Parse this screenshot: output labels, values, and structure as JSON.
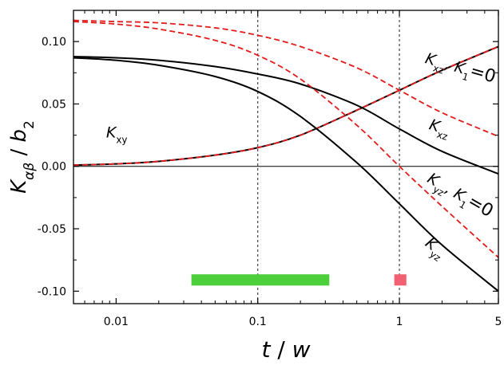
{
  "chart_data": {
    "type": "line",
    "xscale": "log",
    "xlim": [
      0.005,
      5
    ],
    "ylim": [
      -0.11,
      0.125
    ],
    "xticks": [
      0.01,
      0.1,
      1,
      5
    ],
    "xtick_labels": [
      "0.01",
      "0.1",
      "1",
      "5"
    ],
    "yticks": [
      -0.1,
      -0.05,
      0.0,
      0.05,
      0.1
    ],
    "ytick_labels": [
      "-0.10",
      "-0.05",
      "0.00",
      "0.05",
      "0.10"
    ],
    "xlabel": {
      "main": "t",
      "sep": " / ",
      "den": "w"
    },
    "ylabel": {
      "main": "K",
      "sub": "αβ",
      "sep": " / ",
      "den": "b",
      "den_sub": "2"
    },
    "vlines": [
      0.1,
      1
    ],
    "hline": 0,
    "series": [
      {
        "id": "kxy-solid",
        "style": "solid",
        "color": "#000000",
        "x": [
          0.005,
          0.01,
          0.02,
          0.05,
          0.1,
          0.2,
          0.5,
          1,
          2,
          5
        ],
        "y": [
          0.001,
          0.002,
          0.004,
          0.009,
          0.015,
          0.025,
          0.045,
          0.061,
          0.077,
          0.096
        ]
      },
      {
        "id": "kxy-dashed",
        "style": "dashed",
        "color": "#e21b1b",
        "x": [
          0.005,
          0.01,
          0.02,
          0.05,
          0.1,
          0.2,
          0.5,
          1,
          2,
          5
        ],
        "y": [
          0.001,
          0.002,
          0.004,
          0.009,
          0.015,
          0.025,
          0.045,
          0.061,
          0.077,
          0.096
        ]
      },
      {
        "id": "kxz-solid",
        "style": "solid",
        "color": "#000000",
        "x": [
          0.005,
          0.01,
          0.02,
          0.05,
          0.1,
          0.2,
          0.5,
          1,
          2,
          5
        ],
        "y": [
          0.088,
          0.087,
          0.085,
          0.08,
          0.074,
          0.066,
          0.049,
          0.03,
          0.012,
          -0.006
        ]
      },
      {
        "id": "kyz-solid",
        "style": "solid",
        "color": "#000000",
        "x": [
          0.005,
          0.01,
          0.02,
          0.05,
          0.1,
          0.2,
          0.5,
          1,
          2,
          5
        ],
        "y": [
          0.087,
          0.085,
          0.081,
          0.072,
          0.06,
          0.04,
          0.003,
          -0.03,
          -0.063,
          -0.1
        ]
      },
      {
        "id": "kxz-k1-dashed",
        "style": "dashed",
        "color": "#e21b1b",
        "x": [
          0.005,
          0.01,
          0.02,
          0.05,
          0.1,
          0.2,
          0.5,
          1,
          2,
          5
        ],
        "y": [
          0.117,
          0.116,
          0.115,
          0.111,
          0.105,
          0.096,
          0.079,
          0.061,
          0.043,
          0.024
        ]
      },
      {
        "id": "kyz-k1-dashed",
        "style": "dashed",
        "color": "#e21b1b",
        "x": [
          0.005,
          0.01,
          0.02,
          0.05,
          0.1,
          0.2,
          0.5,
          1,
          2,
          5
        ],
        "y": [
          0.116,
          0.114,
          0.11,
          0.101,
          0.089,
          0.07,
          0.033,
          0.0,
          -0.032,
          -0.073
        ]
      }
    ],
    "bands": [
      {
        "id": "green-band",
        "x0": 0.034,
        "x1": 0.32,
        "y0": -0.0955,
        "y1": -0.0865,
        "color": "#4ccf3a"
      },
      {
        "id": "pink-band",
        "x0": 0.92,
        "x1": 1.12,
        "y0": -0.0955,
        "y1": -0.0865,
        "color": "#f26073"
      }
    ],
    "annotations": [
      {
        "id": "label-kxy",
        "main": "K",
        "sub": "xy",
        "x": 0.0085,
        "y": 0.023,
        "rotate": 0
      },
      {
        "id": "label-kxz-k1",
        "main": "K",
        "sub": "xz",
        "tail": ", K",
        "tail_sub": "1",
        "tail_end": "=0",
        "x": 1.5,
        "y": 0.083,
        "rotate": 16
      },
      {
        "id": "label-kxz",
        "main": "K",
        "sub": "xz",
        "x": 1.6,
        "y": 0.03,
        "rotate": 17
      },
      {
        "id": "label-kyz-k1",
        "main": "K",
        "sub": "yz",
        "tail": ", K",
        "tail_sub": "1",
        "tail_end": "=0",
        "x": 1.55,
        "y": -0.012,
        "rotate": 30
      },
      {
        "id": "label-kyz",
        "main": "K",
        "sub": "yz",
        "x": 1.5,
        "y": -0.063,
        "rotate": 37
      }
    ]
  }
}
